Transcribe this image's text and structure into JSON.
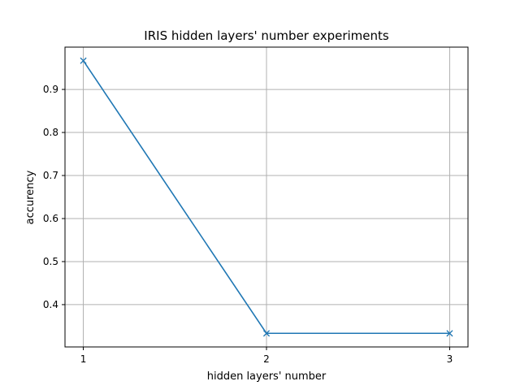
{
  "chart_data": {
    "type": "line",
    "title": "IRIS hidden layers' number experiments",
    "xlabel": "hidden layers' number",
    "ylabel": "accurency",
    "x": [
      1,
      2,
      3
    ],
    "series": [
      {
        "values": [
          0.9667,
          0.3333,
          0.3333
        ],
        "color": "#1f77b4",
        "marker": "x"
      }
    ],
    "xlim": [
      0.9,
      3.1
    ],
    "ylim": [
      0.3017,
      0.9983
    ],
    "xticks": [
      1,
      2,
      3
    ],
    "xtick_labels": [
      "1",
      "2",
      "3"
    ],
    "yticks": [
      0.4,
      0.5,
      0.6,
      0.7,
      0.8,
      0.9
    ],
    "ytick_labels": [
      "0.4",
      "0.5",
      "0.6",
      "0.7",
      "0.8",
      "0.9"
    ],
    "grid": true
  }
}
